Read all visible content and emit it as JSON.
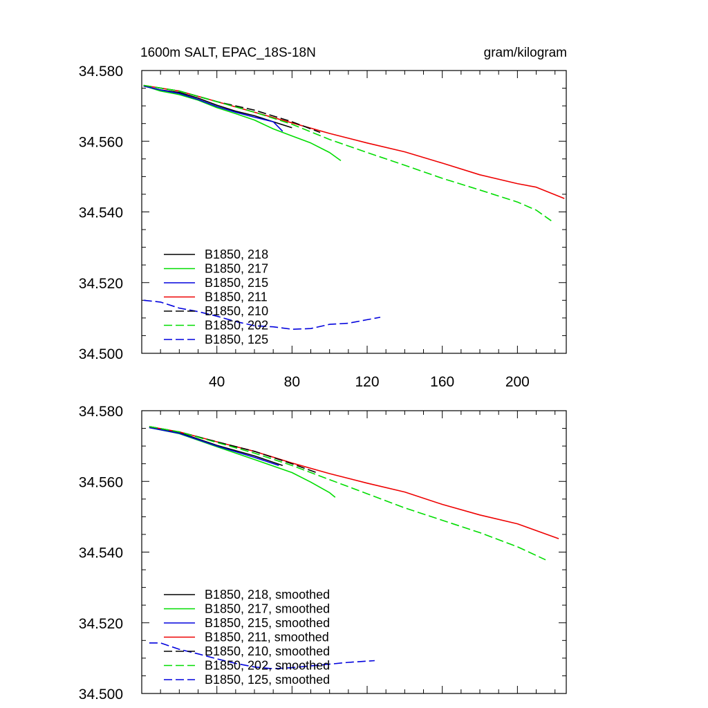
{
  "chart_data": [
    {
      "type": "line",
      "title": "1600m SALT, EPAC_18S-18N",
      "units": "gram/kilogram",
      "xlabel": "",
      "ylabel": "",
      "xlim": [
        0,
        226
      ],
      "ylim": [
        34.5,
        34.58
      ],
      "x_ticks": [
        40,
        80,
        120,
        160,
        200
      ],
      "x_tick_labels": [
        "40",
        "80",
        "120",
        "160",
        "200"
      ],
      "y_ticks": [
        34.5,
        34.52,
        34.54,
        34.56,
        34.58
      ],
      "y_tick_labels": [
        "34.500",
        "34.520",
        "34.540",
        "34.560",
        "34.580"
      ],
      "grid": false,
      "legend_position": "bottom-left",
      "series": [
        {
          "name": "B1850, 218",
          "color": "#000000",
          "dash": "solid",
          "x": [
            1,
            10,
            20,
            30,
            40,
            50,
            60,
            70,
            80
          ],
          "y": [
            34.5756,
            34.5745,
            34.5738,
            34.5722,
            34.5702,
            34.5685,
            34.5672,
            34.5655,
            34.5638
          ]
        },
        {
          "name": "B1850, 217",
          "color": "#00dd00",
          "dash": "solid",
          "x": [
            1,
            10,
            20,
            30,
            40,
            50,
            60,
            70,
            80,
            90,
            100,
            106
          ],
          "y": [
            34.5757,
            34.5742,
            34.5732,
            34.5716,
            34.5695,
            34.5678,
            34.566,
            34.5635,
            34.5615,
            34.5595,
            34.5568,
            34.5545
          ]
        },
        {
          "name": "B1850, 215",
          "color": "#0000dd",
          "dash": "solid",
          "x": [
            1,
            10,
            20,
            30,
            40,
            50,
            60,
            70,
            75
          ],
          "y": [
            34.5756,
            34.5745,
            34.5735,
            34.5718,
            34.5698,
            34.5682,
            34.5668,
            34.5655,
            34.5628
          ]
        },
        {
          "name": "B1850, 211",
          "color": "#ee0000",
          "dash": "solid",
          "x": [
            1,
            20,
            40,
            60,
            80,
            100,
            120,
            140,
            160,
            180,
            200,
            210,
            225
          ],
          "y": [
            34.5758,
            34.5742,
            34.5712,
            34.5682,
            34.5652,
            34.5622,
            34.5595,
            34.557,
            34.5538,
            34.5505,
            34.548,
            34.547,
            34.5438
          ]
        },
        {
          "name": "B1850, 210",
          "color": "#000000",
          "dash": "dashed",
          "x": [
            1,
            20,
            40,
            60,
            80,
            95
          ],
          "y": [
            34.5758,
            34.5742,
            34.5712,
            34.5688,
            34.5655,
            34.5625
          ]
        },
        {
          "name": "B1850, 202",
          "color": "#00dd00",
          "dash": "dashed",
          "x": [
            1,
            20,
            40,
            60,
            80,
            100,
            120,
            140,
            160,
            180,
            200,
            210,
            218
          ],
          "y": [
            34.5758,
            34.5742,
            34.5712,
            34.5682,
            34.5648,
            34.5605,
            34.5568,
            34.5532,
            34.5495,
            34.5462,
            34.5428,
            34.5405,
            34.5375
          ]
        },
        {
          "name": "B1850, 125",
          "color": "#0000dd",
          "dash": "dashed",
          "x": [
            1,
            10,
            20,
            30,
            40,
            50,
            60,
            70,
            80,
            90,
            100,
            110,
            120,
            127
          ],
          "y": [
            34.515,
            34.5145,
            34.5128,
            34.5118,
            34.5105,
            34.509,
            34.5078,
            34.5075,
            34.5068,
            34.507,
            34.5082,
            34.5085,
            34.5095,
            34.5102
          ]
        }
      ]
    },
    {
      "type": "line",
      "title": "",
      "xlabel": "",
      "ylabel": "",
      "xlim": [
        0,
        226
      ],
      "ylim": [
        34.5,
        34.58
      ],
      "y_ticks": [
        34.5,
        34.52,
        34.54,
        34.56,
        34.58
      ],
      "y_tick_labels": [
        "34.500",
        "34.520",
        "34.540",
        "34.560",
        "34.580"
      ],
      "grid": false,
      "legend_position": "bottom-left",
      "series": [
        {
          "name": "B1850, 218, smoothed",
          "color": "#000000",
          "dash": "solid",
          "x": [
            4,
            20,
            40,
            60,
            75
          ],
          "y": [
            34.5752,
            34.5738,
            34.5702,
            34.5672,
            34.5645
          ]
        },
        {
          "name": "B1850, 217, smoothed",
          "color": "#00dd00",
          "dash": "solid",
          "x": [
            4,
            20,
            40,
            60,
            80,
            90,
            100,
            103
          ],
          "y": [
            34.5752,
            34.5735,
            34.5698,
            34.5662,
            34.5625,
            34.5598,
            34.5568,
            34.5555
          ]
        },
        {
          "name": "B1850, 215, smoothed",
          "color": "#0000dd",
          "dash": "solid",
          "x": [
            4,
            20,
            40,
            60,
            73
          ],
          "y": [
            34.5752,
            34.5736,
            34.57,
            34.5668,
            34.5645
          ]
        },
        {
          "name": "B1850, 211, smoothed",
          "color": "#ee0000",
          "dash": "solid",
          "x": [
            4,
            20,
            40,
            60,
            80,
            100,
            120,
            140,
            160,
            180,
            200,
            222
          ],
          "y": [
            34.5755,
            34.574,
            34.5712,
            34.5685,
            34.5652,
            34.5622,
            34.5595,
            34.557,
            34.5535,
            34.5505,
            34.548,
            34.5438
          ]
        },
        {
          "name": "B1850, 210, smoothed",
          "color": "#000000",
          "dash": "dashed",
          "x": [
            4,
            20,
            40,
            60,
            80,
            93
          ],
          "y": [
            34.5755,
            34.574,
            34.5712,
            34.5685,
            34.565,
            34.5625
          ]
        },
        {
          "name": "B1850, 202, smoothed",
          "color": "#00dd00",
          "dash": "dashed",
          "x": [
            4,
            20,
            40,
            60,
            80,
            100,
            120,
            140,
            160,
            180,
            200,
            215
          ],
          "y": [
            34.5755,
            34.574,
            34.571,
            34.568,
            34.5645,
            34.5605,
            34.5565,
            34.5525,
            34.549,
            34.5455,
            34.5415,
            34.5378
          ]
        },
        {
          "name": "B1850, 125, smoothed",
          "color": "#0000dd",
          "dash": "dashed",
          "x": [
            4,
            10,
            20,
            30,
            40,
            50,
            60,
            70,
            80,
            90,
            100,
            110,
            124
          ],
          "y": [
            34.5143,
            34.5143,
            34.5125,
            34.5112,
            34.5098,
            34.5085,
            34.5075,
            34.507,
            34.5073,
            34.5078,
            34.5083,
            34.5088,
            34.5093
          ]
        }
      ]
    }
  ]
}
